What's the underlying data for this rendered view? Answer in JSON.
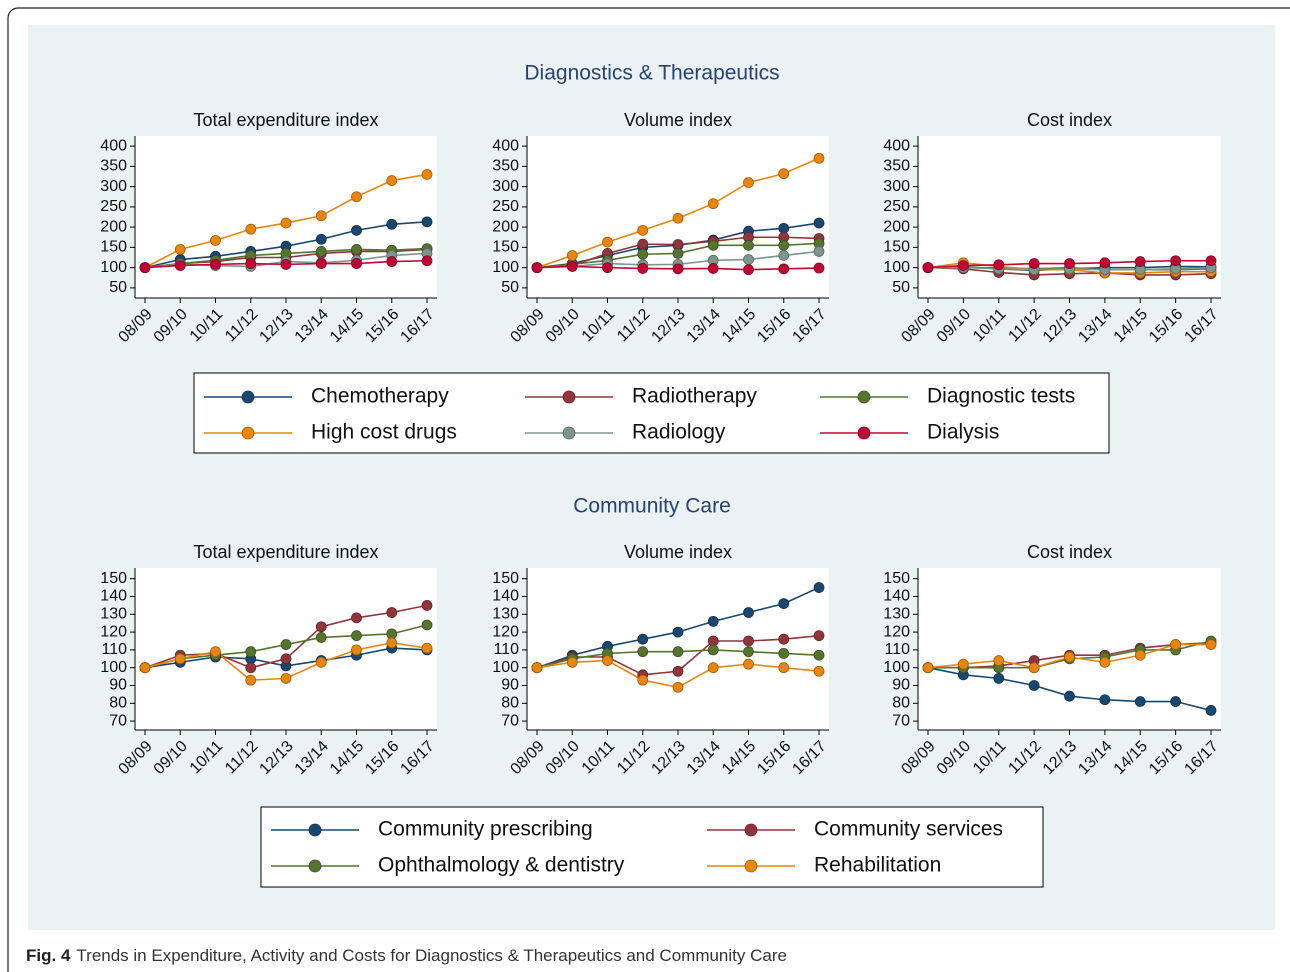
{
  "sections": [
    "Diagnostics & Therapeutics",
    "Community Care"
  ],
  "caption": {
    "label": "Fig. 4",
    "text": "Trends in Expenditure, Activity and Costs for Diagnostics & Therapeutics and Community Care"
  },
  "chart_data": [
    {
      "type": "line",
      "title": "Total expenditure index",
      "categories": [
        "08/09",
        "09/10",
        "10/11",
        "11/12",
        "12/13",
        "13/14",
        "14/15",
        "15/16",
        "16/17"
      ],
      "ylim": [
        25,
        425
      ],
      "yticks": [
        50,
        100,
        150,
        200,
        250,
        300,
        350,
        400
      ],
      "series": [
        {
          "name": "Chemotherapy",
          "color": "#1a476f",
          "values": [
            100,
            120,
            128,
            140,
            153,
            170,
            192,
            207,
            213
          ]
        },
        {
          "name": "Radiotherapy",
          "color": "#90353b",
          "values": [
            100,
            110,
            115,
            125,
            125,
            135,
            140,
            140,
            145
          ]
        },
        {
          "name": "Diagnostic tests",
          "color": "#55752f",
          "values": [
            100,
            110,
            118,
            130,
            135,
            140,
            145,
            143,
            147
          ]
        },
        {
          "name": "High cost drugs",
          "color": "#e8850c",
          "values": [
            100,
            145,
            167,
            195,
            210,
            228,
            275,
            315,
            330
          ]
        },
        {
          "name": "Radiology",
          "color": "#7d968c",
          "values": [
            100,
            108,
            105,
            103,
            115,
            112,
            118,
            130,
            135
          ]
        },
        {
          "name": "Dialysis",
          "color": "#c10534",
          "values": [
            100,
            105,
            108,
            110,
            108,
            110,
            110,
            115,
            117
          ]
        }
      ]
    },
    {
      "type": "line",
      "title": "Volume index",
      "categories": [
        "08/09",
        "09/10",
        "10/11",
        "11/12",
        "12/13",
        "13/14",
        "14/15",
        "15/16",
        "16/17"
      ],
      "ylim": [
        25,
        425
      ],
      "yticks": [
        50,
        100,
        150,
        200,
        250,
        300,
        350,
        400
      ],
      "series": [
        {
          "name": "Chemotherapy",
          "color": "#1a476f",
          "values": [
            100,
            110,
            130,
            150,
            155,
            168,
            190,
            197,
            210
          ]
        },
        {
          "name": "Radiotherapy",
          "color": "#90353b",
          "values": [
            100,
            105,
            135,
            158,
            157,
            165,
            175,
            175,
            172
          ]
        },
        {
          "name": "Diagnostic tests",
          "color": "#55752f",
          "values": [
            100,
            108,
            118,
            133,
            135,
            155,
            155,
            155,
            160
          ]
        },
        {
          "name": "High cost drugs",
          "color": "#e8850c",
          "values": [
            100,
            130,
            163,
            192,
            222,
            258,
            310,
            332,
            370
          ]
        },
        {
          "name": "Radiology",
          "color": "#7d968c",
          "values": [
            100,
            103,
            110,
            107,
            108,
            118,
            120,
            130,
            140
          ]
        },
        {
          "name": "Dialysis",
          "color": "#c10534",
          "values": [
            100,
            103,
            100,
            98,
            97,
            98,
            95,
            97,
            99
          ]
        }
      ]
    },
    {
      "type": "line",
      "title": "Cost index",
      "categories": [
        "08/09",
        "09/10",
        "10/11",
        "11/12",
        "12/13",
        "13/14",
        "14/15",
        "15/16",
        "16/17"
      ],
      "ylim": [
        25,
        425
      ],
      "yticks": [
        50,
        100,
        150,
        200,
        250,
        300,
        350,
        400
      ],
      "series": [
        {
          "name": "Chemotherapy",
          "color": "#1a476f",
          "values": [
            100,
            102,
            97,
            93,
            97,
            100,
            100,
            103,
            102
          ]
        },
        {
          "name": "Radiotherapy",
          "color": "#90353b",
          "values": [
            100,
            97,
            88,
            82,
            85,
            87,
            82,
            82,
            85
          ]
        },
        {
          "name": "Diagnostic tests",
          "color": "#55752f",
          "values": [
            100,
            100,
            100,
            97,
            100,
            95,
            95,
            95,
            97
          ]
        },
        {
          "name": "High cost drugs",
          "color": "#e8850c",
          "values": [
            100,
            112,
            103,
            95,
            95,
            87,
            87,
            90,
            90
          ]
        },
        {
          "name": "Radiology",
          "color": "#7d968c",
          "values": [
            100,
            100,
            97,
            95,
            97,
            95,
            95,
            97,
            100
          ]
        },
        {
          "name": "Dialysis",
          "color": "#c10534",
          "values": [
            100,
            105,
            107,
            110,
            110,
            112,
            115,
            117,
            117
          ]
        }
      ]
    },
    {
      "type": "line",
      "title": "Total expenditure index",
      "categories": [
        "08/09",
        "09/10",
        "10/11",
        "11/12",
        "12/13",
        "13/14",
        "14/15",
        "15/16",
        "16/17"
      ],
      "ylim": [
        65,
        156
      ],
      "yticks": [
        70,
        80,
        90,
        100,
        110,
        120,
        130,
        140,
        150
      ],
      "series": [
        {
          "name": "Community prescribing",
          "color": "#1a476f",
          "values": [
            100,
            103,
            106,
            105,
            101,
            104,
            107,
            111,
            110
          ]
        },
        {
          "name": "Community services",
          "color": "#90353b",
          "values": [
            100,
            107,
            108,
            100,
            105,
            123,
            128,
            131,
            135
          ]
        },
        {
          "name": "Ophthalmology & dentistry",
          "color": "#55752f",
          "values": [
            100,
            105,
            107,
            109,
            113,
            117,
            118,
            119,
            124
          ]
        },
        {
          "name": "Rehabilitation",
          "color": "#e8850c",
          "values": [
            100,
            105,
            109,
            93,
            94,
            103,
            110,
            114,
            111
          ]
        }
      ]
    },
    {
      "type": "line",
      "title": "Volume index",
      "categories": [
        "08/09",
        "09/10",
        "10/11",
        "11/12",
        "12/13",
        "13/14",
        "14/15",
        "15/16",
        "16/17"
      ],
      "ylim": [
        65,
        156
      ],
      "yticks": [
        70,
        80,
        90,
        100,
        110,
        120,
        130,
        140,
        150
      ],
      "series": [
        {
          "name": "Community prescribing",
          "color": "#1a476f",
          "values": [
            100,
            107,
            112,
            116,
            120,
            126,
            131,
            136,
            145
          ]
        },
        {
          "name": "Community services",
          "color": "#90353b",
          "values": [
            100,
            106,
            106,
            96,
            98,
            115,
            115,
            116,
            118
          ]
        },
        {
          "name": "Ophthalmology & dentistry",
          "color": "#55752f",
          "values": [
            100,
            105,
            108,
            109,
            109,
            110,
            109,
            108,
            107
          ]
        },
        {
          "name": "Rehabilitation",
          "color": "#e8850c",
          "values": [
            100,
            103,
            104,
            93,
            89,
            100,
            102,
            100,
            98
          ]
        }
      ]
    },
    {
      "type": "line",
      "title": "Cost index",
      "categories": [
        "08/09",
        "09/10",
        "10/11",
        "11/12",
        "12/13",
        "13/14",
        "14/15",
        "15/16",
        "16/17"
      ],
      "ylim": [
        65,
        156
      ],
      "yticks": [
        70,
        80,
        90,
        100,
        110,
        120,
        130,
        140,
        150
      ],
      "series": [
        {
          "name": "Community prescribing",
          "color": "#1a476f",
          "values": [
            100,
            96,
            94,
            90,
            84,
            82,
            81,
            81,
            76
          ]
        },
        {
          "name": "Community services",
          "color": "#90353b",
          "values": [
            100,
            100,
            101,
            104,
            107,
            107,
            111,
            113,
            114
          ]
        },
        {
          "name": "Ophthalmology & dentistry",
          "color": "#55752f",
          "values": [
            100,
            100,
            100,
            100,
            105,
            106,
            110,
            110,
            115
          ]
        },
        {
          "name": "Rehabilitation",
          "color": "#e8850c",
          "values": [
            100,
            102,
            104,
            100,
            106,
            103,
            107,
            113,
            113
          ]
        }
      ]
    }
  ]
}
